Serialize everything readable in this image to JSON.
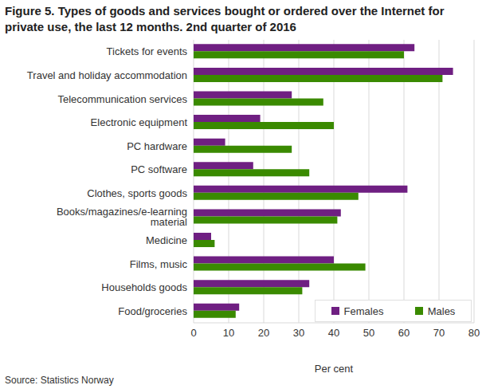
{
  "chart_data": {
    "type": "bar",
    "orientation": "horizontal",
    "title": "Figure 5. Types of goods and services bought or ordered over the Internet for private use, the last 12 months. 2nd quarter of 2016",
    "source": "Source: Statistics Norway",
    "x_label": "Per cent",
    "categories": [
      "Tickets for events",
      "Travel and holiday accommodation",
      "Telecommunication services",
      "Electronic equipment",
      "PC hardware",
      "PC software",
      "Clothes, sports goods",
      "Books/magazines/e-learning material",
      "Medicine",
      "Films, music",
      "Households goods",
      "Food/groceries"
    ],
    "series": [
      {
        "name": "Females",
        "color": "#6f1f82",
        "values": [
          63,
          74,
          28,
          19,
          9,
          17,
          61,
          42,
          5,
          40,
          33,
          13
        ]
      },
      {
        "name": "Males",
        "color": "#3a8a00",
        "values": [
          60,
          71,
          37,
          40,
          28,
          33,
          47,
          41,
          6,
          49,
          31,
          12
        ]
      }
    ],
    "xlim": [
      0,
      80
    ],
    "xticks": [
      0,
      10,
      20,
      30,
      40,
      50,
      60,
      70,
      80
    ],
    "grid": true,
    "legend": "lower right"
  }
}
